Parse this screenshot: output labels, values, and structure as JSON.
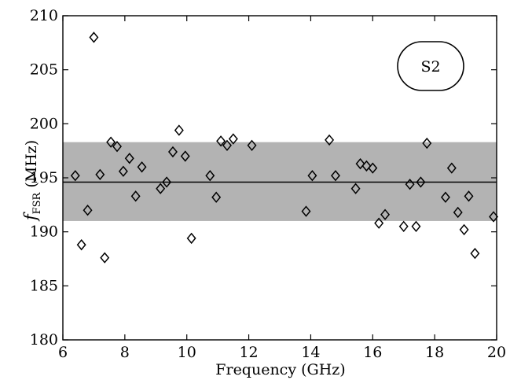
{
  "chart_data": {
    "type": "scatter",
    "title": "",
    "xlabel": "Frequency (GHz)",
    "ylabel": {
      "symbol": "f",
      "subscript": "FSR",
      "unit": "(MHz)"
    },
    "xlim": [
      6,
      20
    ],
    "ylim": [
      180,
      210
    ],
    "xticks": [
      6,
      8,
      10,
      12,
      14,
      16,
      18,
      20
    ],
    "yticks": [
      180,
      185,
      190,
      195,
      200,
      205,
      210
    ],
    "grid": false,
    "annotation": "S2",
    "reference_line": {
      "y": 194.6,
      "color": "#000000"
    },
    "band": {
      "y0": 191.0,
      "y1": 198.3,
      "color": "#b3b3b3"
    },
    "marker": "diamond",
    "series": [
      {
        "points": [
          [
            6.4,
            195.2
          ],
          [
            6.6,
            188.8
          ],
          [
            6.8,
            192.0
          ],
          [
            7.0,
            208.0
          ],
          [
            7.2,
            195.3
          ],
          [
            7.35,
            187.6
          ],
          [
            7.55,
            198.3
          ],
          [
            7.75,
            197.9
          ],
          [
            7.95,
            195.6
          ],
          [
            8.15,
            196.8
          ],
          [
            8.35,
            193.3
          ],
          [
            8.55,
            196.0
          ],
          [
            9.15,
            194.0
          ],
          [
            9.35,
            194.6
          ],
          [
            9.55,
            197.4
          ],
          [
            9.75,
            199.4
          ],
          [
            9.95,
            197.0
          ],
          [
            10.15,
            189.4
          ],
          [
            10.75,
            195.2
          ],
          [
            10.95,
            193.2
          ],
          [
            11.1,
            198.4
          ],
          [
            11.3,
            198.0
          ],
          [
            11.5,
            198.6
          ],
          [
            12.1,
            198.0
          ],
          [
            13.85,
            191.9
          ],
          [
            14.05,
            195.2
          ],
          [
            14.6,
            198.5
          ],
          [
            14.8,
            195.2
          ],
          [
            15.45,
            194.0
          ],
          [
            15.6,
            196.3
          ],
          [
            15.8,
            196.1
          ],
          [
            16.0,
            195.9
          ],
          [
            16.2,
            190.8
          ],
          [
            16.4,
            191.6
          ],
          [
            17.0,
            190.5
          ],
          [
            17.2,
            194.4
          ],
          [
            17.4,
            190.5
          ],
          [
            17.55,
            194.6
          ],
          [
            17.75,
            198.2
          ],
          [
            18.35,
            193.2
          ],
          [
            18.55,
            195.9
          ],
          [
            18.75,
            191.8
          ],
          [
            18.95,
            190.2
          ],
          [
            19.1,
            193.3
          ],
          [
            19.3,
            188.0
          ],
          [
            19.9,
            191.4
          ]
        ]
      }
    ]
  }
}
